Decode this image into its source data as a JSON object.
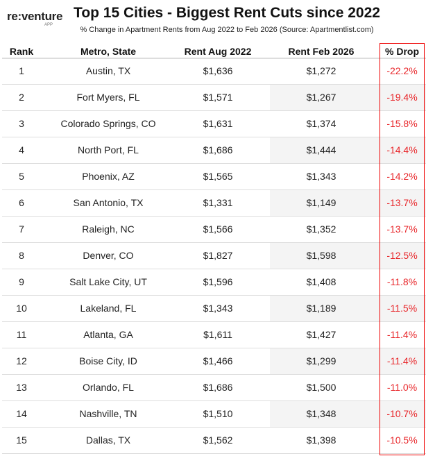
{
  "logo": {
    "text": "re:venture",
    "sub": "APP"
  },
  "chart_data": {
    "type": "table",
    "title": "Top 15 Cities - Biggest Rent Cuts since 2022",
    "subtitle": "% Change in Apartment Rents from Aug 2022 to Feb 2026 (Source: Apartmentlist.com)",
    "columns": [
      "Rank",
      "Metro, State",
      "Rent Aug 2022",
      "Rent Feb 2026",
      "% Drop"
    ],
    "rows": [
      [
        "1",
        "Austin, TX",
        "$1,636",
        "$1,272",
        "-22.2%"
      ],
      [
        "2",
        "Fort Myers, FL",
        "$1,571",
        "$1,267",
        "-19.4%"
      ],
      [
        "3",
        "Colorado Springs, CO",
        "$1,631",
        "$1,374",
        "-15.8%"
      ],
      [
        "4",
        "North Port, FL",
        "$1,686",
        "$1,444",
        "-14.4%"
      ],
      [
        "5",
        "Phoenix, AZ",
        "$1,565",
        "$1,343",
        "-14.2%"
      ],
      [
        "6",
        "San Antonio, TX",
        "$1,331",
        "$1,149",
        "-13.7%"
      ],
      [
        "7",
        "Raleigh, NC",
        "$1,566",
        "$1,352",
        "-13.7%"
      ],
      [
        "8",
        "Denver, CO",
        "$1,827",
        "$1,598",
        "-12.5%"
      ],
      [
        "9",
        "Salt Lake City, UT",
        "$1,596",
        "$1,408",
        "-11.8%"
      ],
      [
        "10",
        "Lakeland, FL",
        "$1,343",
        "$1,189",
        "-11.5%"
      ],
      [
        "11",
        "Atlanta, GA",
        "$1,611",
        "$1,427",
        "-11.4%"
      ],
      [
        "12",
        "Boise City, ID",
        "$1,466",
        "$1,299",
        "-11.4%"
      ],
      [
        "13",
        "Orlando, FL",
        "$1,686",
        "$1,500",
        "-11.0%"
      ],
      [
        "14",
        "Nashville, TN",
        "$1,510",
        "$1,348",
        "-10.7%"
      ],
      [
        "15",
        "Dallas, TX",
        "$1,562",
        "$1,398",
        "-10.5%"
      ]
    ],
    "colors": {
      "drop": "#e8262a",
      "highlight_border": "#e00000"
    }
  }
}
